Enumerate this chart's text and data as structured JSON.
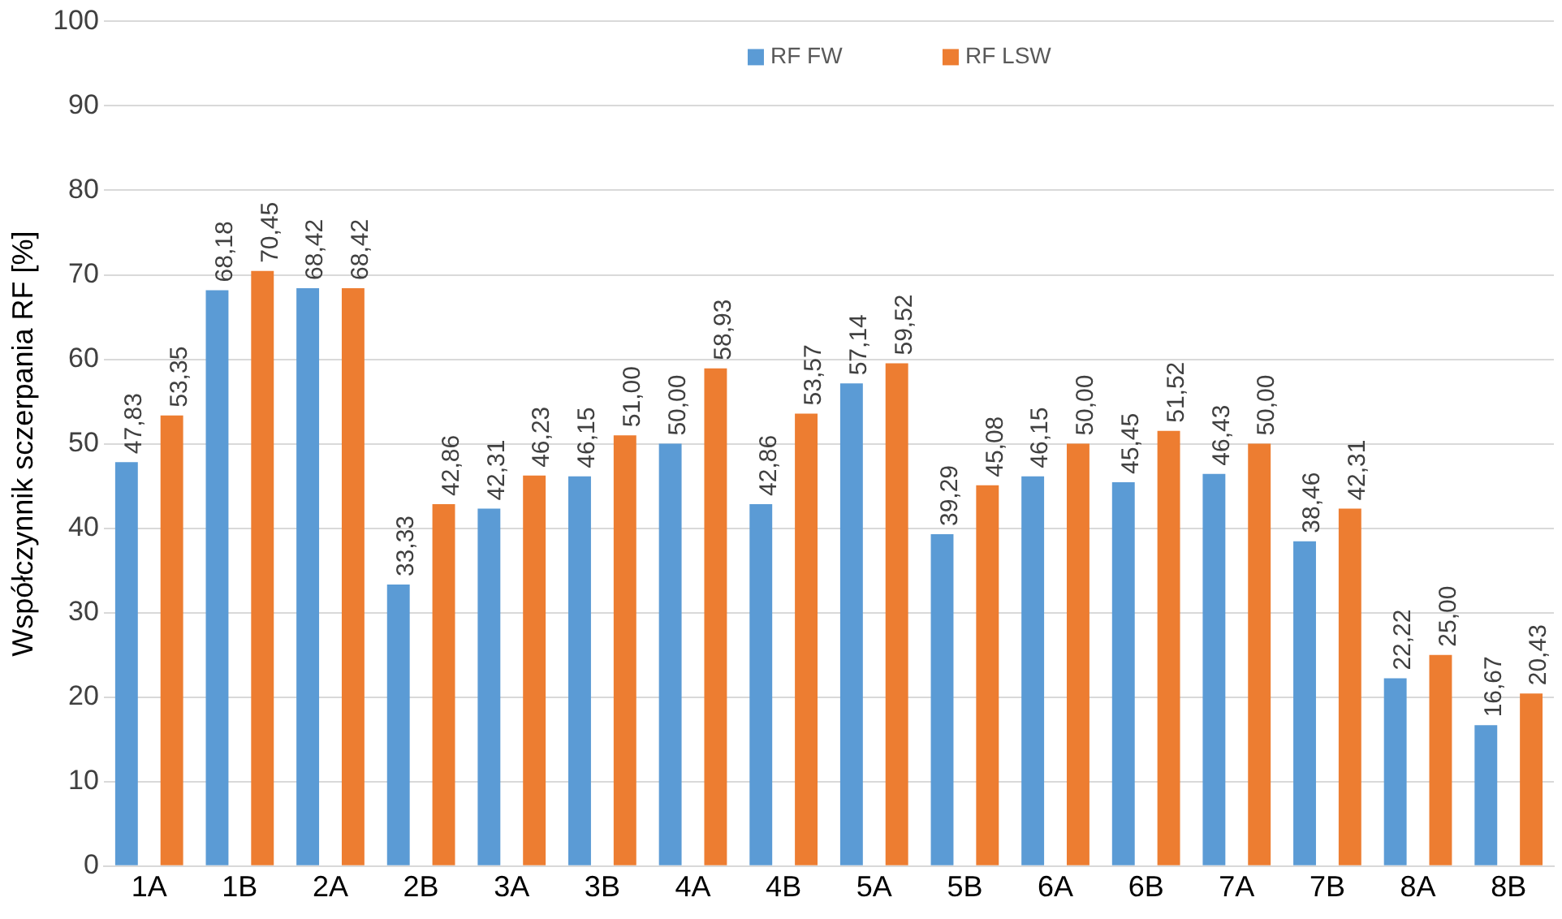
{
  "chart_data": {
    "type": "bar",
    "ylabel": "Współczynnik sczerpania RF [%]",
    "categories": [
      "1A",
      "1B",
      "2A",
      "2B",
      "3A",
      "3B",
      "4A",
      "4B",
      "5A",
      "5B",
      "6A",
      "6B",
      "7A",
      "7B",
      "8A",
      "8B"
    ],
    "series": [
      {
        "name": "RF FW",
        "color": "#5b9bd5",
        "values": [
          47.83,
          68.18,
          68.42,
          33.33,
          42.31,
          46.15,
          50.0,
          42.86,
          57.14,
          39.29,
          46.15,
          45.45,
          46.43,
          38.46,
          22.22,
          16.67
        ],
        "value_labels": [
          "47,83",
          "68,18",
          "68,42",
          "33,33",
          "42,31",
          "46,15",
          "50,00",
          "42,86",
          "57,14",
          "39,29",
          "46,15",
          "45,45",
          "46,43",
          "38,46",
          "22,22",
          "16,67"
        ]
      },
      {
        "name": "RF LSW",
        "color": "#ed7d31",
        "values": [
          53.35,
          70.45,
          68.42,
          42.86,
          46.23,
          51.0,
          58.93,
          53.57,
          59.52,
          45.08,
          50.0,
          51.52,
          50.0,
          42.31,
          25.0,
          20.43
        ],
        "value_labels": [
          "53,35",
          "70,45",
          "68,42",
          "42,86",
          "46,23",
          "51,00",
          "58,93",
          "53,57",
          "59,52",
          "45,08",
          "50,00",
          "51,52",
          "50,00",
          "42,31",
          "25,00",
          "20,43"
        ]
      }
    ],
    "ylim": [
      0,
      100
    ],
    "yticks": [
      0,
      10,
      20,
      30,
      40,
      50,
      60,
      70,
      80,
      90,
      100
    ],
    "grid": "y",
    "legend": "top"
  }
}
